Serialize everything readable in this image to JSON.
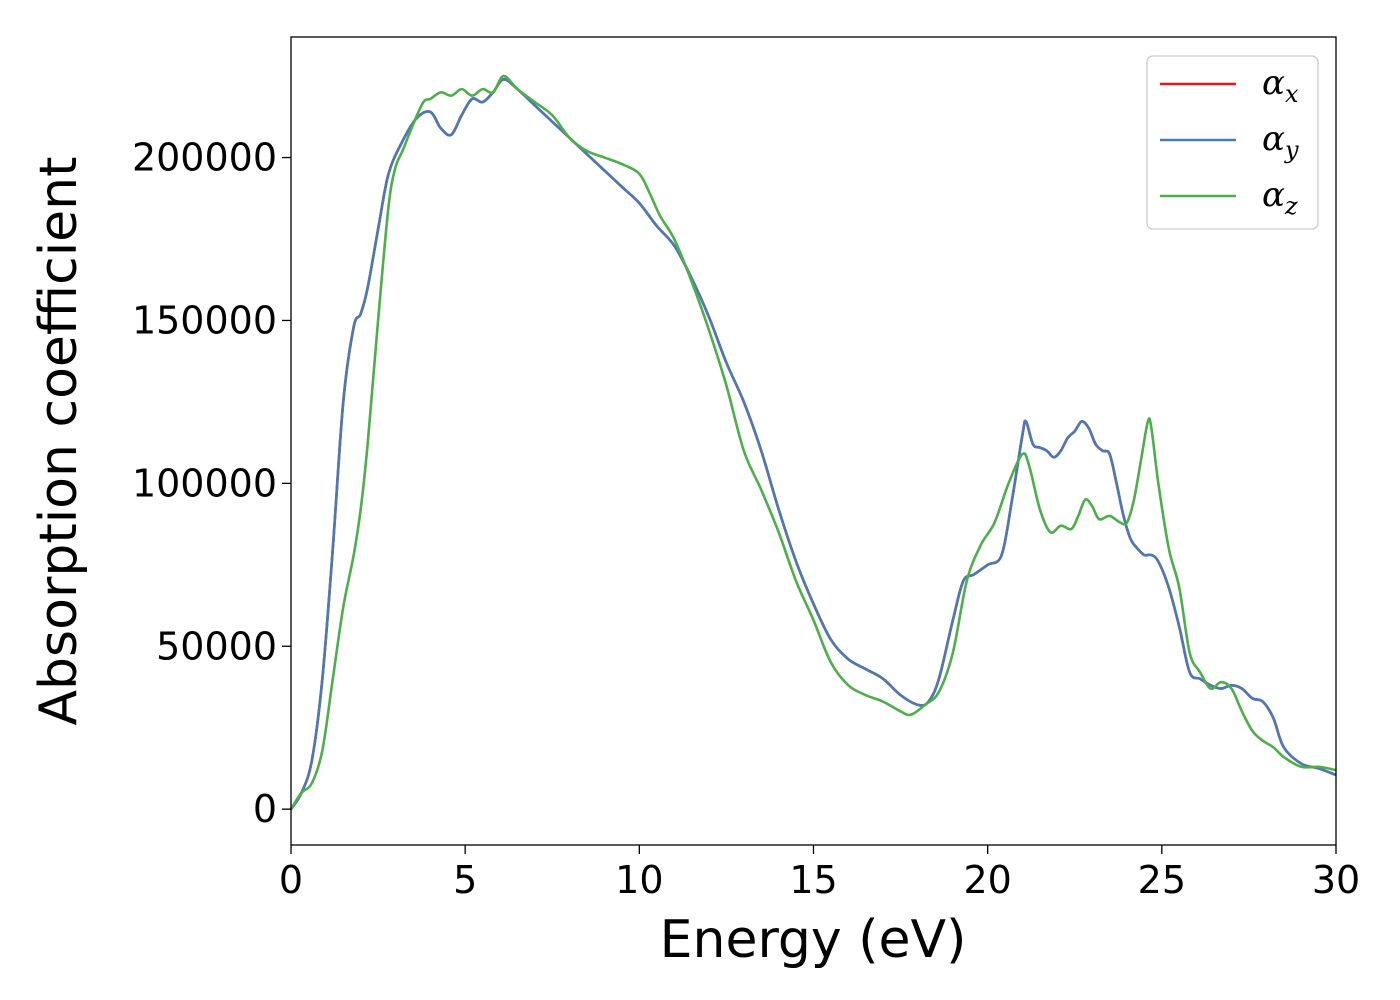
{
  "chart_data": {
    "type": "line",
    "title": "",
    "xlabel": "Energy (eV)",
    "ylabel": "Absorption coefficient",
    "xlim": [
      0,
      30
    ],
    "ylim": [
      -11000,
      237000
    ],
    "xticks": [
      0,
      5,
      10,
      15,
      20,
      25,
      30
    ],
    "xtick_labels": [
      "0",
      "5",
      "10",
      "15",
      "20",
      "25",
      "30"
    ],
    "yticks": [
      0,
      50000,
      100000,
      150000,
      200000
    ],
    "ytick_labels": [
      "0",
      "50000",
      "100000",
      "150000",
      "200000"
    ],
    "grid": false,
    "legend_position": "top-right",
    "series": [
      {
        "name": "αx",
        "legend_base": "α",
        "legend_sub": "x",
        "color": "#e41a1c",
        "x": [
          0,
          0.3,
          0.6,
          0.9,
          1.2,
          1.5,
          1.8,
          2.0,
          2.2,
          2.5,
          2.8,
          3.2,
          3.6,
          4.0,
          4.3,
          4.6,
          4.9,
          5.2,
          5.5,
          5.8,
          6.1,
          6.5,
          7.0,
          7.5,
          8.0,
          8.5,
          9.0,
          9.5,
          10.0,
          10.5,
          11.0,
          11.5,
          12.0,
          12.5,
          13.0,
          13.5,
          14.0,
          14.5,
          15.0,
          15.5,
          16.0,
          16.5,
          17.0,
          17.5,
          18.0,
          18.3,
          18.6,
          19.0,
          19.3,
          19.6,
          20.0,
          20.4,
          20.7,
          21.0,
          21.1,
          21.3,
          21.5,
          21.7,
          21.9,
          22.1,
          22.3,
          22.5,
          22.7,
          22.9,
          23.1,
          23.3,
          23.5,
          23.7,
          23.9,
          24.1,
          24.3,
          24.5,
          24.7,
          24.9,
          25.2,
          25.5,
          25.8,
          26.1,
          26.4,
          26.7,
          27.0,
          27.3,
          27.6,
          27.9,
          28.2,
          28.5,
          29.0,
          29.5,
          30.0
        ],
        "y": [
          0,
          5000,
          15000,
          40000,
          80000,
          125000,
          148000,
          152000,
          160000,
          178000,
          195000,
          205000,
          212000,
          214000,
          209000,
          207000,
          213000,
          218000,
          217000,
          220000,
          224000,
          221000,
          216000,
          211000,
          206000,
          201000,
          196000,
          191000,
          186000,
          179000,
          173000,
          163000,
          151000,
          137000,
          125000,
          110000,
          92000,
          76000,
          63000,
          52000,
          46000,
          43000,
          40000,
          35000,
          32000,
          33000,
          40000,
          58000,
          70000,
          72000,
          75000,
          78000,
          95000,
          115000,
          119000,
          112000,
          111000,
          110000,
          108000,
          110000,
          114000,
          116000,
          119000,
          117000,
          112000,
          110000,
          109000,
          100000,
          90000,
          83000,
          80000,
          78000,
          78000,
          76000,
          68000,
          56000,
          42000,
          40000,
          38000,
          37000,
          38000,
          37000,
          34000,
          33000,
          28000,
          19000,
          14000,
          12500,
          10500
        ]
      },
      {
        "name": "αy",
        "legend_base": "α",
        "legend_sub": "y",
        "color": "#4a7ab5",
        "x": [
          0,
          0.3,
          0.6,
          0.9,
          1.2,
          1.5,
          1.8,
          2.0,
          2.2,
          2.5,
          2.8,
          3.2,
          3.6,
          4.0,
          4.3,
          4.6,
          4.9,
          5.2,
          5.5,
          5.8,
          6.1,
          6.5,
          7.0,
          7.5,
          8.0,
          8.5,
          9.0,
          9.5,
          10.0,
          10.5,
          11.0,
          11.5,
          12.0,
          12.5,
          13.0,
          13.5,
          14.0,
          14.5,
          15.0,
          15.5,
          16.0,
          16.5,
          17.0,
          17.5,
          18.0,
          18.3,
          18.6,
          19.0,
          19.3,
          19.6,
          20.0,
          20.4,
          20.7,
          21.0,
          21.1,
          21.3,
          21.5,
          21.7,
          21.9,
          22.1,
          22.3,
          22.5,
          22.7,
          22.9,
          23.1,
          23.3,
          23.5,
          23.7,
          23.9,
          24.1,
          24.3,
          24.5,
          24.7,
          24.9,
          25.2,
          25.5,
          25.8,
          26.1,
          26.4,
          26.7,
          27.0,
          27.3,
          27.6,
          27.9,
          28.2,
          28.5,
          29.0,
          29.5,
          30.0
        ],
        "y": [
          0,
          5000,
          15000,
          40000,
          80000,
          125000,
          148000,
          152000,
          160000,
          178000,
          195000,
          205000,
          212000,
          214000,
          209000,
          207000,
          213000,
          218000,
          217000,
          220000,
          224000,
          221000,
          216000,
          211000,
          206000,
          201000,
          196000,
          191000,
          186000,
          179000,
          173000,
          163000,
          151000,
          137000,
          125000,
          110000,
          92000,
          76000,
          63000,
          52000,
          46000,
          43000,
          40000,
          35000,
          32000,
          33000,
          40000,
          58000,
          70000,
          72000,
          75000,
          78000,
          95000,
          115000,
          119000,
          112000,
          111000,
          110000,
          108000,
          110000,
          114000,
          116000,
          119000,
          117000,
          112000,
          110000,
          109000,
          100000,
          90000,
          83000,
          80000,
          78000,
          78000,
          76000,
          68000,
          56000,
          42000,
          40000,
          38000,
          37000,
          38000,
          37000,
          34000,
          33000,
          28000,
          19000,
          14000,
          12500,
          10500
        ]
      },
      {
        "name": "αz",
        "legend_base": "α",
        "legend_sub": "z",
        "color": "#4daf4a",
        "x": [
          0,
          0.3,
          0.6,
          0.9,
          1.2,
          1.5,
          1.8,
          2.0,
          2.2,
          2.5,
          2.8,
          3.0,
          3.2,
          3.5,
          3.8,
          4.0,
          4.3,
          4.6,
          4.9,
          5.2,
          5.5,
          5.8,
          6.1,
          6.5,
          7.0,
          7.5,
          8.0,
          8.5,
          9.0,
          9.5,
          10.0,
          10.3,
          10.6,
          11.0,
          11.5,
          12.0,
          12.5,
          13.0,
          13.5,
          14.0,
          14.5,
          15.0,
          15.5,
          16.0,
          16.5,
          17.0,
          17.5,
          17.8,
          18.2,
          18.6,
          19.0,
          19.4,
          19.8,
          20.2,
          20.6,
          21.0,
          21.2,
          21.5,
          21.8,
          22.1,
          22.4,
          22.6,
          22.8,
          23.0,
          23.2,
          23.5,
          23.8,
          24.0,
          24.2,
          24.4,
          24.6,
          24.7,
          24.9,
          25.2,
          25.5,
          25.8,
          26.1,
          26.4,
          26.7,
          27.0,
          27.3,
          27.6,
          27.9,
          28.2,
          28.5,
          29.0,
          29.5,
          30.0
        ],
        "y": [
          0,
          5000,
          8000,
          18000,
          40000,
          62000,
          78000,
          92000,
          112000,
          150000,
          185000,
          197000,
          202000,
          210000,
          217000,
          218000,
          220000,
          219000,
          221000,
          219000,
          221000,
          220000,
          225000,
          221000,
          217000,
          213000,
          206000,
          202000,
          200000,
          198000,
          195000,
          189000,
          182000,
          175000,
          162000,
          147000,
          130000,
          110000,
          98000,
          85000,
          70000,
          58000,
          45000,
          38000,
          35000,
          33000,
          30000,
          29000,
          32000,
          36000,
          48000,
          70000,
          81000,
          88000,
          100000,
          109000,
          105000,
          92000,
          85000,
          87000,
          86000,
          90000,
          95000,
          93000,
          89000,
          90000,
          88000,
          88000,
          95000,
          107000,
          119000,
          117000,
          100000,
          80000,
          68000,
          48000,
          42000,
          37000,
          39000,
          37000,
          30000,
          24000,
          21000,
          19000,
          16000,
          13000,
          13000,
          12000
        ]
      }
    ]
  }
}
